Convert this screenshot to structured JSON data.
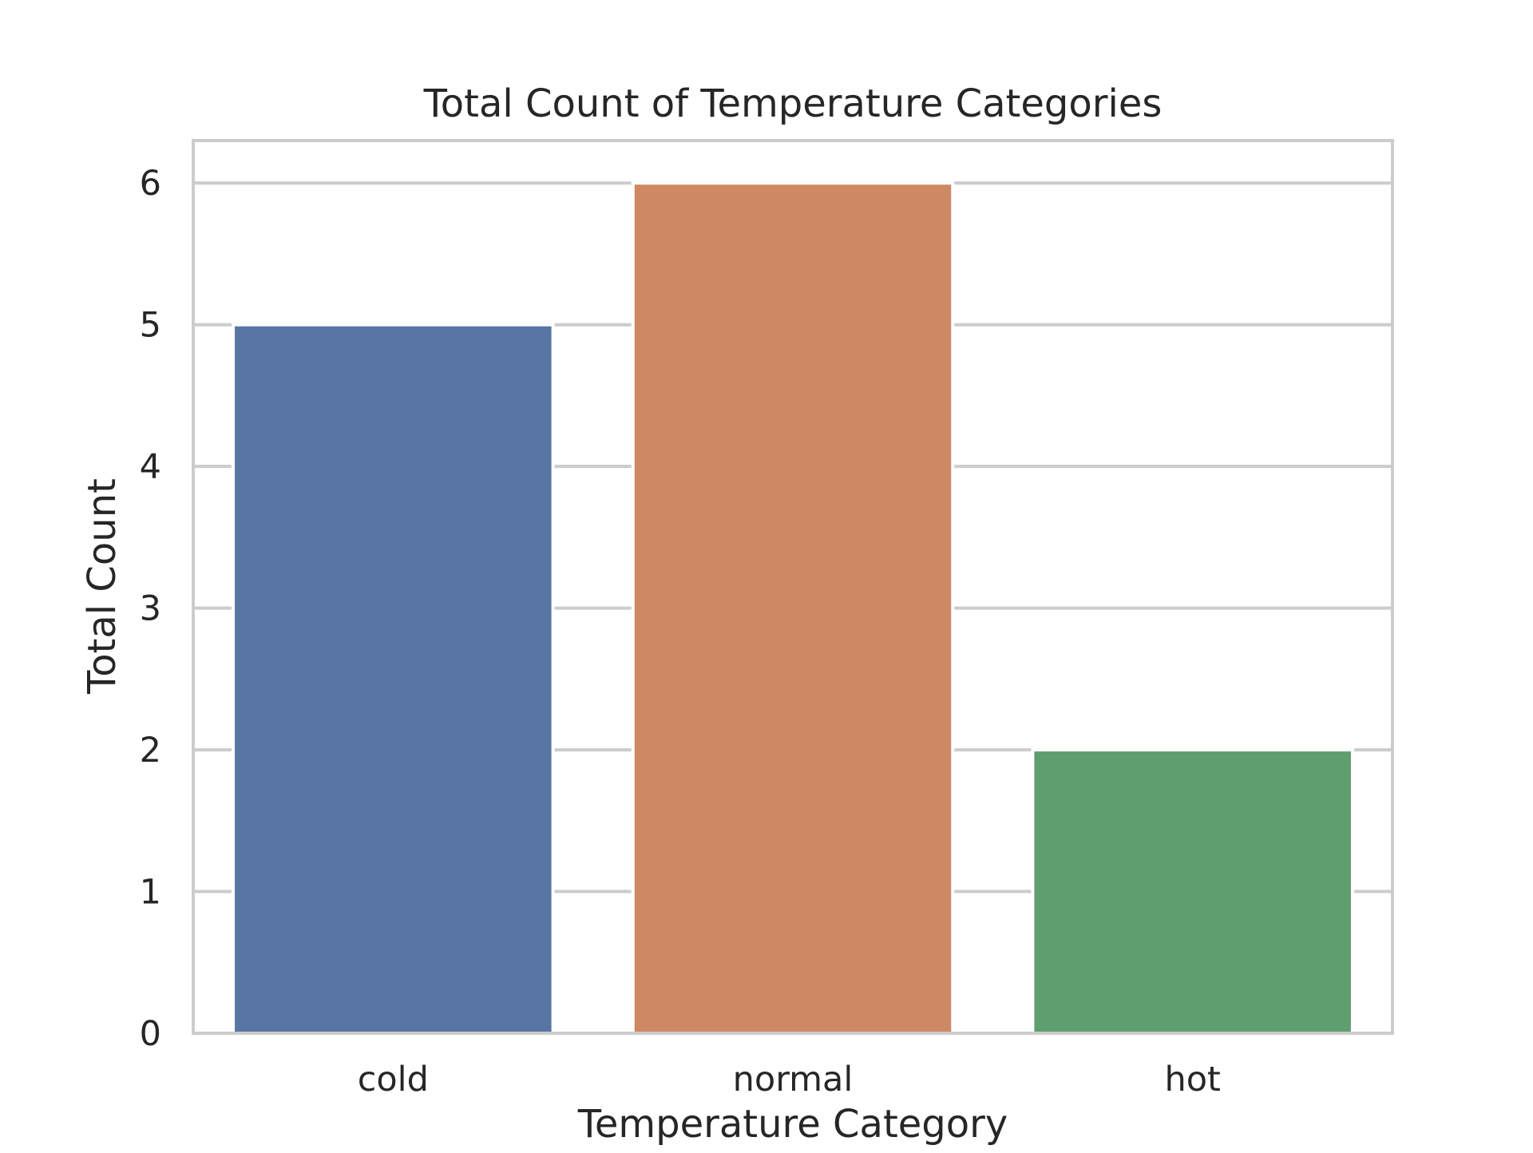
{
  "chart_data": {
    "type": "bar",
    "title": "Total Count of Temperature Categories",
    "xlabel": "Temperature Category",
    "ylabel": "Total Count",
    "categories": [
      "cold",
      "normal",
      "hot"
    ],
    "values": [
      5,
      6,
      2
    ],
    "colors": [
      "#5875a4",
      "#cc8963",
      "#5f9e6e"
    ],
    "ylim": [
      0,
      6.3
    ],
    "yticks": [
      "0",
      "1",
      "2",
      "3",
      "4",
      "5",
      "6"
    ],
    "grid": true,
    "legend": "none",
    "grid_color": "#cccccc",
    "spine_color": "#cccccc"
  }
}
